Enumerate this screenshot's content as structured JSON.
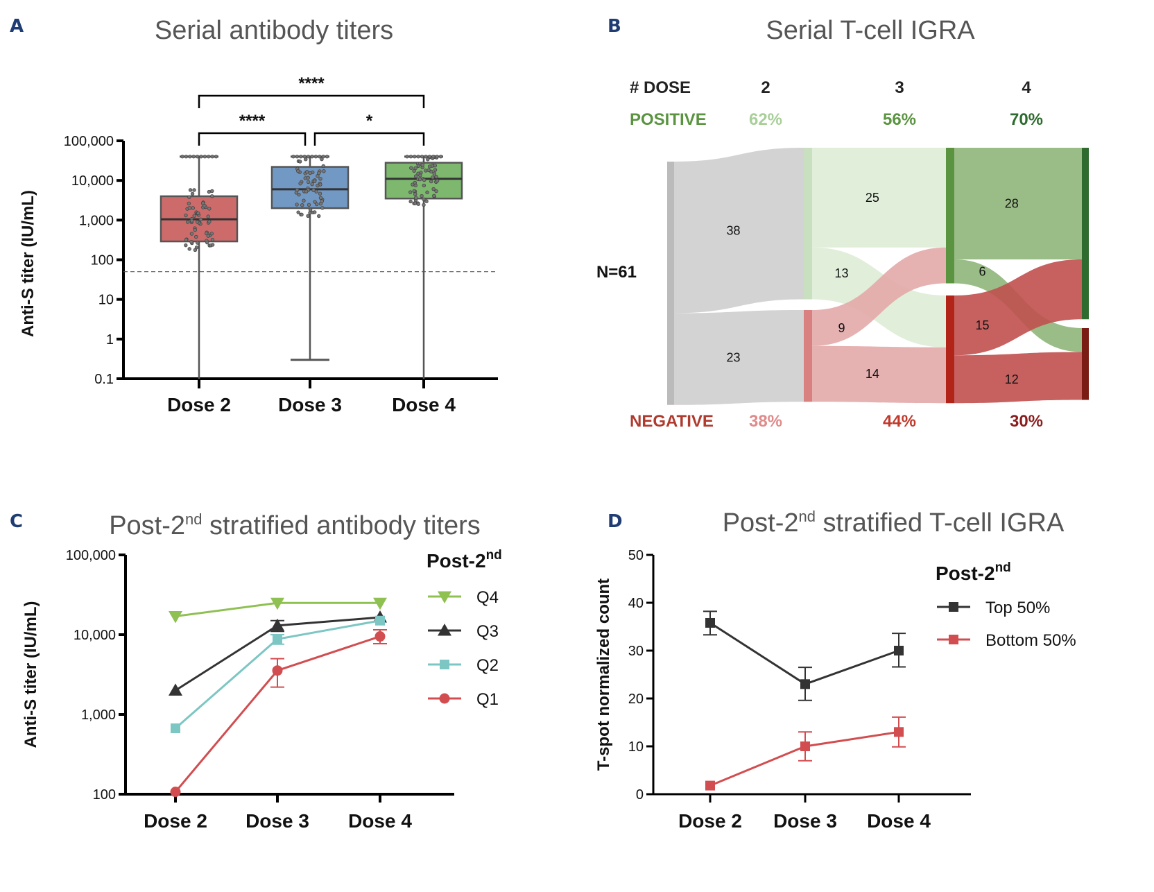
{
  "panels": {
    "A": {
      "letter": "A",
      "title": "Serial antibody  titers"
    },
    "B": {
      "letter": "B",
      "title": "Serial T-cell IGRA"
    },
    "C": {
      "letter": "C",
      "title_pre": "Post-2",
      "title_sup": "nd",
      "title_post": " stratified antibody  titers"
    },
    "D": {
      "letter": "D",
      "title_pre": "Post-2",
      "title_sup": "nd",
      "title_post": " stratified T-cell IGRA"
    }
  },
  "colors": {
    "dose2_box": "#cd6b6b",
    "dose3_box": "#7299c4",
    "dose4_box": "#7db86e",
    "q4": "#8fc052",
    "q3": "#333333",
    "q2": "#7cc6c4",
    "q1": "#d24d50",
    "top50": "#333333",
    "bottom50": "#d24d50",
    "panel_letter": "#1f3d73"
  },
  "chart_data": [
    {
      "id": "A",
      "type": "box",
      "title": "Serial antibody  titers",
      "xlabel": "",
      "ylabel": "Anti-S  titer (IU/mL)",
      "yscale": "log",
      "ylim": [
        0.1,
        100000
      ],
      "yticks": [
        0.1,
        1,
        10,
        100,
        1000,
        10000,
        100000
      ],
      "ytick_labels": [
        "0.1",
        "1",
        "10",
        "100",
        "1,000",
        "10,000",
        "100,000"
      ],
      "categories": [
        "Dose 2",
        "Dose 3",
        "Dose 4"
      ],
      "boxes": [
        {
          "category": "Dose 2",
          "min": 0.1,
          "q1": 290,
          "median": 1050,
          "q3": 4000,
          "max": 40000
        },
        {
          "category": "Dose 3",
          "min": 0.3,
          "q1": 2000,
          "median": 6000,
          "q3": 22000,
          "max": 40000
        },
        {
          "category": "Dose 4",
          "min": 0.1,
          "q1": 3500,
          "median": 11000,
          "q3": 28000,
          "max": 40000
        }
      ],
      "cutoff_line": 50,
      "significance": [
        {
          "from": "Dose 2",
          "to": "Dose 3",
          "label": "****"
        },
        {
          "from": "Dose 3",
          "to": "Dose 4",
          "label": "*"
        },
        {
          "from": "Dose 2",
          "to": "Dose 4",
          "label": "****"
        }
      ]
    },
    {
      "id": "B",
      "type": "sankey",
      "title": "Serial T-cell IGRA",
      "total_label": "N=61",
      "dose_header": "# DOSE",
      "doses": [
        "2",
        "3",
        "4"
      ],
      "positive_label": "POSITIVE",
      "negative_label": "NEGATIVE",
      "positive_pct": [
        "62%",
        "56%",
        "70%"
      ],
      "negative_pct": [
        "38%",
        "44%",
        "30%"
      ],
      "positive_pct_colors": [
        "#a8cf98",
        "#5a9440",
        "#2e6b2e"
      ],
      "negative_pct_colors": [
        "#e08a8a",
        "#c0392b",
        "#8b1e1e"
      ],
      "flows": [
        {
          "from": "Total",
          "to": "D2 Positive",
          "value": 38
        },
        {
          "from": "Total",
          "to": "D2 Negative",
          "value": 23
        },
        {
          "from": "D2 Positive",
          "to": "D3 Positive",
          "value": 25
        },
        {
          "from": "D2 Positive",
          "to": "D3 Negative",
          "value": 13
        },
        {
          "from": "D2 Negative",
          "to": "D3 Positive",
          "value": 9
        },
        {
          "from": "D2 Negative",
          "to": "D3 Negative",
          "value": 14
        },
        {
          "from": "D3 Positive",
          "to": "D4 Positive",
          "value": 28
        },
        {
          "from": "D3 Positive",
          "to": "D4 Negative",
          "value": 6
        },
        {
          "from": "D3 Negative",
          "to": "D4 Positive",
          "value": 15
        },
        {
          "from": "D3 Negative",
          "to": "D4 Negative",
          "value": 12
        }
      ]
    },
    {
      "id": "C",
      "type": "line",
      "title": "Post-2nd stratified antibody  titers",
      "ylabel": "Anti-S  titer (IU/mL)",
      "yscale": "log",
      "ylim": [
        100,
        100000
      ],
      "yticks": [
        100,
        1000,
        10000,
        100000
      ],
      "ytick_labels": [
        "100",
        "1,000",
        "10,000",
        "100,000"
      ],
      "categories": [
        "Dose 2",
        "Dose 3",
        "Dose 4"
      ],
      "legend_title_pre": "Post-2",
      "legend_title_sup": "nd",
      "legend_placement": "right",
      "series": [
        {
          "name": "Q4",
          "marker": "triangle-down",
          "values": [
            17000,
            25000,
            25000
          ],
          "err_low": [
            null,
            null,
            null
          ],
          "err_high": [
            null,
            null,
            null
          ]
        },
        {
          "name": "Q3",
          "marker": "triangle-up",
          "values": [
            2000,
            13000,
            16500
          ],
          "err_low": [
            null,
            11000,
            null
          ],
          "err_high": [
            null,
            15000,
            null
          ]
        },
        {
          "name": "Q2",
          "marker": "square",
          "values": [
            670,
            8800,
            15000
          ],
          "err_low": [
            null,
            7600,
            null
          ],
          "err_high": [
            null,
            10000,
            null
          ]
        },
        {
          "name": "Q1",
          "marker": "circle",
          "values": [
            107,
            3550,
            9500
          ],
          "err_low": [
            null,
            2200,
            7700
          ],
          "err_high": [
            null,
            5000,
            11500
          ]
        }
      ]
    },
    {
      "id": "D",
      "type": "line",
      "title": "Post-2nd stratified T-cell IGRA",
      "ylabel": "T-spot normalized count",
      "ylim": [
        0,
        50
      ],
      "yticks": [
        0,
        10,
        20,
        30,
        40,
        50
      ],
      "ytick_labels": [
        "0",
        "10",
        "20",
        "30",
        "40",
        "50"
      ],
      "categories": [
        "Dose 2",
        "Dose 3",
        "Dose 4"
      ],
      "legend_title_pre": "Post-2",
      "legend_title_sup": "nd",
      "legend_placement": "right",
      "series": [
        {
          "name": "Top 50%",
          "marker": "square",
          "values": [
            35.8,
            23,
            30
          ],
          "err_low": [
            33.3,
            19.6,
            26.6
          ],
          "err_high": [
            38.2,
            26.5,
            33.6
          ]
        },
        {
          "name": "Bottom 50%",
          "marker": "square",
          "values": [
            1.8,
            10,
            13
          ],
          "err_low": [
            null,
            7,
            9.9
          ],
          "err_high": [
            null,
            13,
            16.1
          ]
        }
      ]
    }
  ]
}
